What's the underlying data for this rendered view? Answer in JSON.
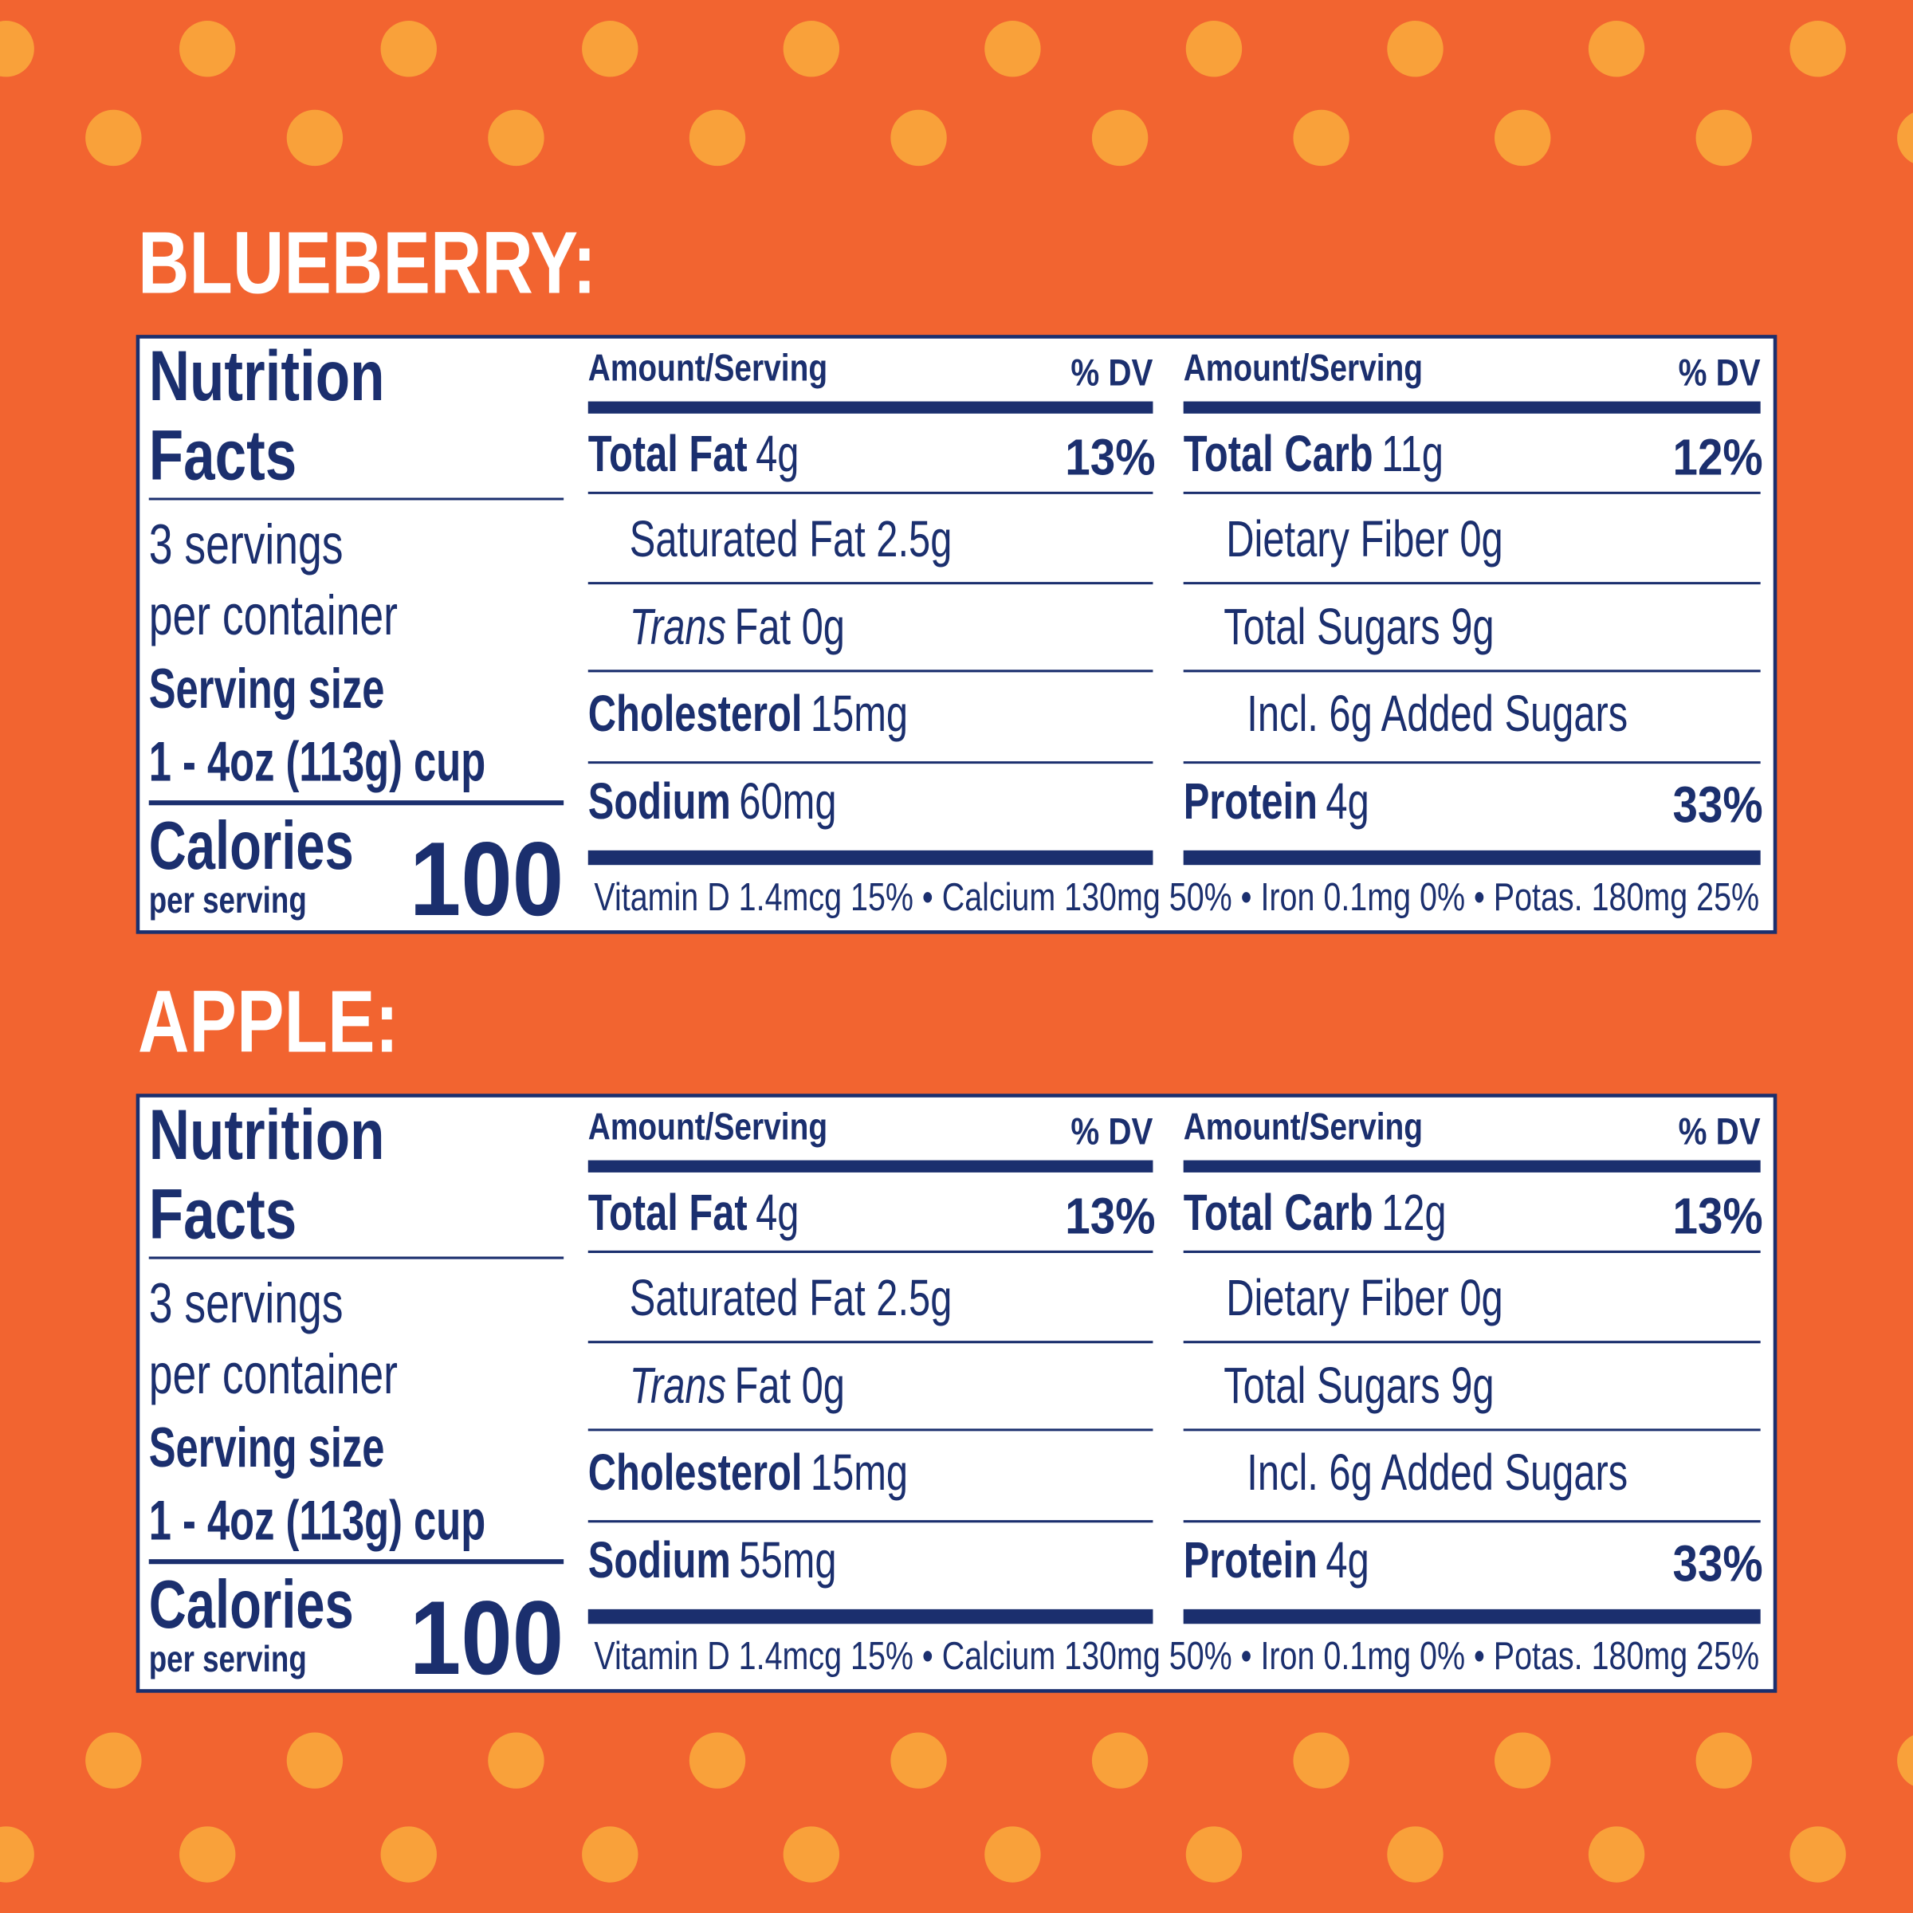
{
  "labels": [
    {
      "heading": "BLUEBERRY:",
      "title": [
        "Nutrition",
        "Facts"
      ],
      "servings": [
        "3 servings",
        "per container"
      ],
      "serving_size_label": "Serving size",
      "serving_size": "1 - 4oz (113g) cup",
      "calories_label": "Calories",
      "calories_sub": "per serving",
      "calories": 100,
      "columns": [
        {
          "header": {
            "amount": "Amount/Serving",
            "dv": "% DV"
          },
          "rows": [
            {
              "bold": "Total Fat",
              "text": "4g",
              "dv": "13%"
            },
            {
              "text": "Saturated Fat 2.5g"
            },
            {
              "italic": "Trans",
              "text": "Fat 0g"
            },
            {
              "bold": "Cholesterol",
              "text": "15mg"
            },
            {
              "bold": "Sodium",
              "text": "60mg"
            }
          ]
        },
        {
          "header": {
            "amount": "Amount/Serving",
            "dv": "% DV"
          },
          "rows": [
            {
              "bold": "Total Carb",
              "text": "11g",
              "dv": "12%"
            },
            {
              "text": "Dietary Fiber 0g"
            },
            {
              "text": "Total Sugars 9g"
            },
            {
              "text": "Incl. 6g Added Sugars"
            },
            {
              "bold": "Protein",
              "text": "4g",
              "dv": "33%"
            }
          ]
        }
      ],
      "vitamins": "Vitamin D 1.4mcg 15% • Calcium 130mg 50% • Iron 0.1mg 0% • Potas. 180mg 25%"
    },
    {
      "heading": "APPLE:",
      "title": [
        "Nutrition",
        "Facts"
      ],
      "servings": [
        "3 servings",
        "per container"
      ],
      "serving_size_label": "Serving size",
      "serving_size": "1 - 4oz (113g) cup",
      "calories_label": "Calories",
      "calories_sub": "per serving",
      "calories": 100,
      "columns": [
        {
          "header": {
            "amount": "Amount/Serving",
            "dv": "% DV"
          },
          "rows": [
            {
              "bold": "Total Fat",
              "text": "4g",
              "dv": "13%"
            },
            {
              "text": "Saturated Fat 2.5g"
            },
            {
              "italic": "Trans",
              "text": "Fat 0g"
            },
            {
              "bold": "Cholesterol",
              "text": "15mg"
            },
            {
              "bold": "Sodium",
              "text": "55mg"
            }
          ]
        },
        {
          "header": {
            "amount": "Amount/Serving",
            "dv": "% DV"
          },
          "rows": [
            {
              "bold": "Total Carb",
              "text": "12g",
              "dv": "13%"
            },
            {
              "text": "Dietary Fiber 0g"
            },
            {
              "text": "Total Sugars 9g"
            },
            {
              "text": "Incl. 6g Added Sugars"
            },
            {
              "bold": "Protein",
              "text": "4g",
              "dv": "33%"
            }
          ]
        }
      ],
      "vitamins": "Vitamin D 1.4mcg 15% • Calcium 130mg 50% • Iron 0.1mg 0% • Potas. 180mg 25%"
    }
  ]
}
